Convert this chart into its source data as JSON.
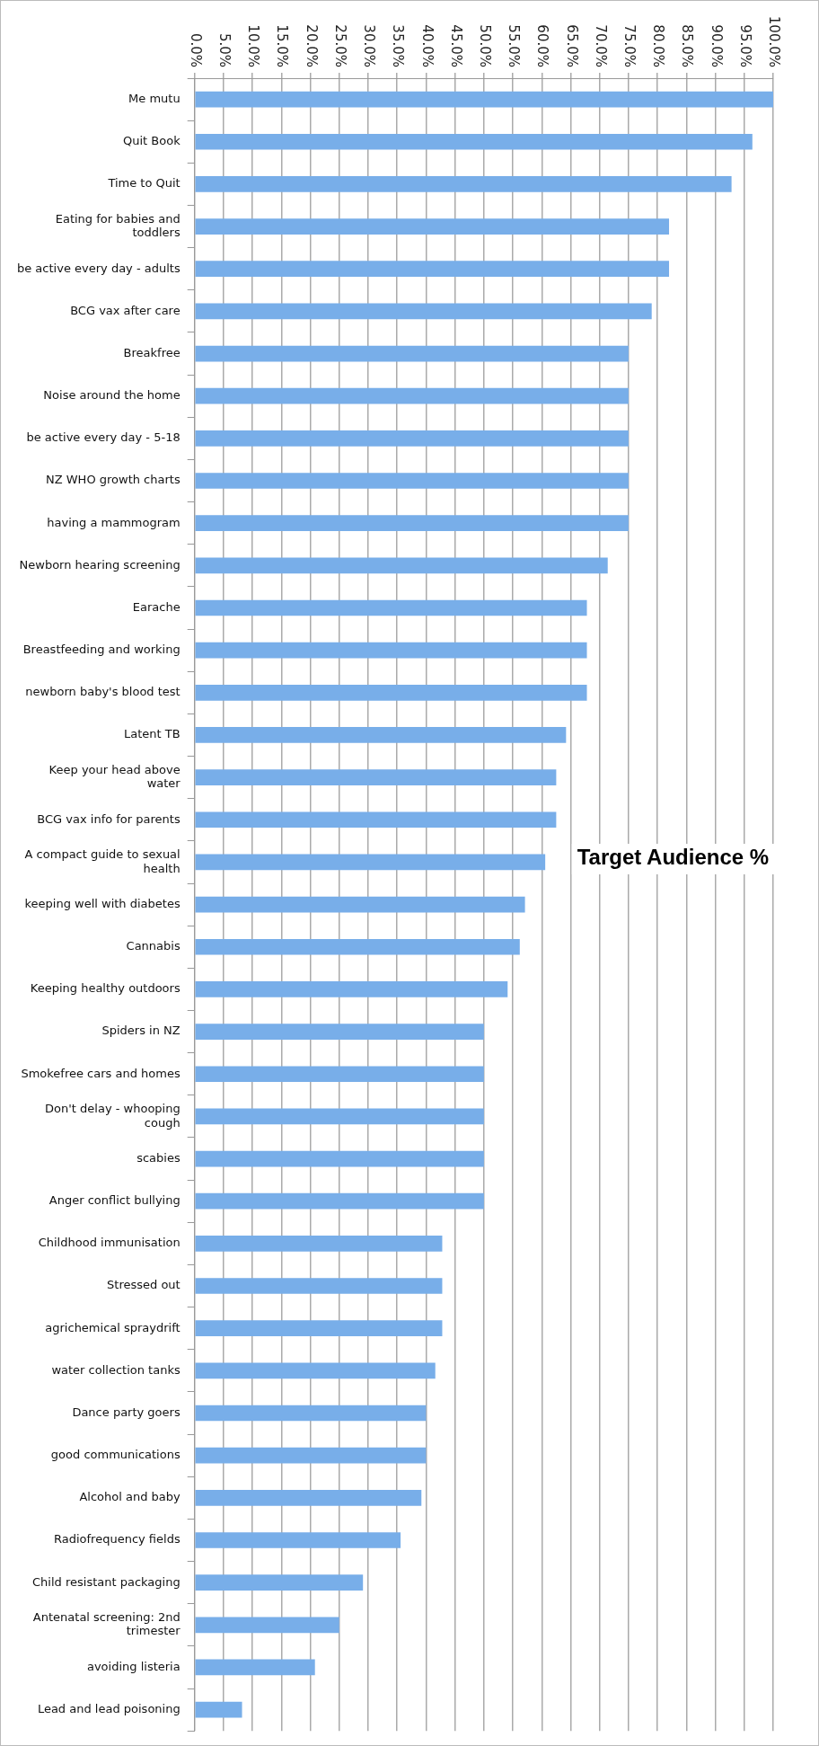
{
  "chart_data": {
    "type": "bar",
    "orientation": "horizontal",
    "title": "Target Audience %",
    "categories": [
      "Me mutu",
      "Quit Book",
      "Time to Quit",
      "Eating for babies and\ntoddlers",
      "be active every day - adults",
      "BCG vax after care",
      "Breakfree",
      "Noise around the home",
      "be active every day - 5-18",
      "NZ WHO growth charts",
      "having a mammogram",
      "Newborn hearing screening",
      "Earache",
      "Breastfeeding and working",
      "newborn baby's blood test",
      "Latent TB",
      "Keep your head above\nwater",
      "BCG vax info for parents",
      "A compact guide to sexual\nhealth",
      "keeping well with diabetes",
      "Cannabis",
      "Keeping healthy outdoors",
      "Spiders in NZ",
      "Smokefree cars and homes",
      "Don't delay - whooping\ncough",
      "scabies",
      "Anger conflict bullying",
      "Childhood immunisation",
      "Stressed out",
      "agrichemical spraydrift",
      "water collection tanks",
      "Dance party goers",
      "good communications",
      "Alcohol and baby",
      "Radiofrequency fields",
      "Child resistant packaging",
      "Antenatal screening: 2nd\ntrimester",
      "avoiding listeria",
      "Lead and lead poisoning"
    ],
    "values": [
      100,
      96.4,
      92.8,
      82,
      82,
      79,
      75,
      75,
      75,
      75,
      75,
      71.4,
      67.8,
      67.8,
      67.8,
      64.2,
      62.5,
      62.5,
      60.6,
      57.1,
      56.2,
      54.1,
      50,
      50,
      50,
      50,
      50,
      42.8,
      42.8,
      42.8,
      41.6,
      40,
      40,
      39.2,
      35.6,
      29.1,
      25,
      20.8,
      8.2
    ],
    "color": "#78aee9",
    "xlim": [
      0,
      100
    ],
    "xticks": [
      {
        "value": 0,
        "label": "0.0%"
      },
      {
        "value": 5,
        "label": "5.0%"
      },
      {
        "value": 10,
        "label": "10.0%"
      },
      {
        "value": 15,
        "label": "15.0%"
      },
      {
        "value": 20,
        "label": "20.0%"
      },
      {
        "value": 25,
        "label": "25.0%"
      },
      {
        "value": 30,
        "label": "30.0%"
      },
      {
        "value": 35,
        "label": "35.0%"
      },
      {
        "value": 40,
        "label": "40.0%"
      },
      {
        "value": 45,
        "label": "45.0%"
      },
      {
        "value": 50,
        "label": "50.0%"
      },
      {
        "value": 55,
        "label": "55.0%"
      },
      {
        "value": 60,
        "label": "60.0%"
      },
      {
        "value": 65,
        "label": "65.0%"
      },
      {
        "value": 70,
        "label": "70.0%"
      },
      {
        "value": 75,
        "label": "75.0%"
      },
      {
        "value": 80,
        "label": "80.0%"
      },
      {
        "value": 85,
        "label": "85.0%"
      },
      {
        "value": 90,
        "label": "90.0%"
      },
      {
        "value": 95,
        "label": "95.0%"
      },
      {
        "value": 100,
        "label": "100.0%"
      }
    ],
    "grid": "x",
    "legend": false
  }
}
